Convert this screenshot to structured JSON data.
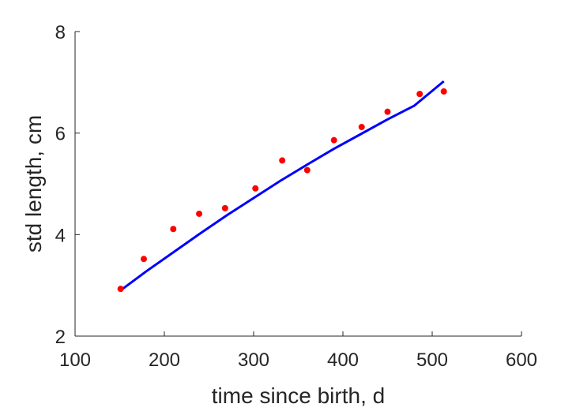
{
  "chart_data": {
    "type": "scatter",
    "xlabel": "time since birth, d",
    "ylabel": "std length, cm",
    "xlim": [
      100,
      600
    ],
    "ylim": [
      2,
      8
    ],
    "x_ticks": [
      "100",
      "200",
      "300",
      "400",
      "500",
      "600"
    ],
    "y_ticks": [
      "2",
      "4",
      "6",
      "8"
    ],
    "grid": false,
    "series": [
      {
        "kind": "points",
        "color": "#ff0000",
        "x": [
          151,
          177,
          210,
          239,
          268,
          302,
          332,
          360,
          390,
          421,
          450,
          486,
          513
        ],
        "y": [
          2.93,
          3.52,
          4.11,
          4.41,
          4.52,
          4.91,
          5.46,
          5.27,
          5.86,
          6.12,
          6.42,
          6.77,
          6.82
        ]
      },
      {
        "kind": "line",
        "color": "#0000ff",
        "x": [
          151,
          180,
          210,
          240,
          270,
          300,
          330,
          360,
          390,
          420,
          450,
          480,
          513
        ],
        "y": [
          2.9,
          3.28,
          3.65,
          4.02,
          4.38,
          4.72,
          5.06,
          5.38,
          5.69,
          5.98,
          6.27,
          6.54,
          7.02
        ]
      }
    ]
  }
}
